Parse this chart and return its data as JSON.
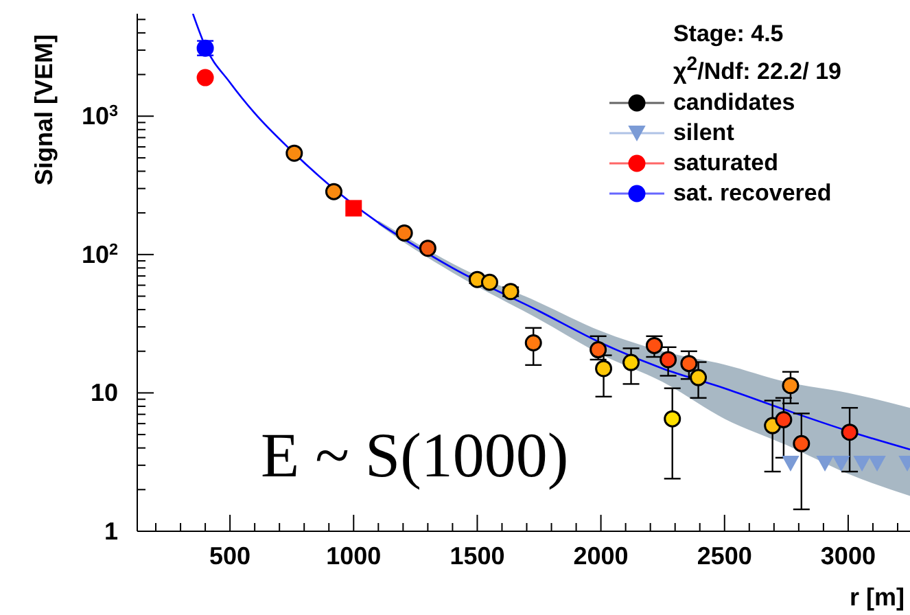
{
  "chart_data": {
    "type": "scatter",
    "xlabel": "r [m]",
    "ylabel": "Signal [VEM]",
    "log": true,
    "legend": "top right",
    "annotations": [
      "E ~ S(1000)",
      "Stage: 4.5",
      "χ$^{2}$/Ndf: 22.2/ 19"
    ],
    "xlim": [
      125,
      3250
    ],
    "xticks": [
      {
        "value": 200,
        "label": null
      },
      {
        "value": 300,
        "label": null
      },
      {
        "value": 400,
        "label": null
      },
      500,
      {
        "value": 600,
        "label": null
      },
      {
        "value": 700,
        "label": null
      },
      {
        "value": 800,
        "label": null
      },
      {
        "value": 900,
        "label": null
      },
      1000,
      {
        "value": 1100,
        "label": null
      },
      {
        "value": 1200,
        "label": null
      },
      {
        "value": 1300,
        "label": null
      },
      {
        "value": 1400,
        "label": null
      },
      1500,
      {
        "value": 1600,
        "label": null
      },
      {
        "value": 1700,
        "label": null
      },
      {
        "value": 1800,
        "label": null
      },
      {
        "value": 1900,
        "label": null
      },
      2000,
      {
        "value": 2100,
        "label": null
      },
      {
        "value": 2200,
        "label": null
      },
      {
        "value": 2300,
        "label": null
      },
      {
        "value": 2400,
        "label": null
      },
      2500,
      {
        "value": 2600,
        "label": null
      },
      {
        "value": 2700,
        "label": null
      },
      {
        "value": 2800,
        "label": null
      },
      {
        "value": 2900,
        "label": null
      },
      3000,
      {
        "value": 3100,
        "label": null
      },
      {
        "value": 3200,
        "label": null
      }
    ],
    "ylim": [
      1,
      5500
    ],
    "yticks": [
      1,
      {
        "value": 2,
        "label": null
      },
      {
        "value": 3,
        "label": null
      },
      {
        "value": 4,
        "label": null
      },
      {
        "value": 5,
        "label": null
      },
      {
        "value": 6,
        "label": null
      },
      {
        "value": 7,
        "label": null
      },
      {
        "value": 8,
        "label": null
      },
      {
        "value": 9,
        "label": null
      },
      10,
      {
        "value": 20,
        "label": null
      },
      {
        "value": 30,
        "label": null
      },
      {
        "value": 40,
        "label": null
      },
      {
        "value": 50,
        "label": null
      },
      {
        "value": 60,
        "label": null
      },
      {
        "value": 70,
        "label": null
      },
      {
        "value": 80,
        "label": null
      },
      {
        "value": 90,
        "label": null
      },
      {
        "value": 100,
        "label": "10$^{2}$"
      },
      {
        "value": 200,
        "label": null
      },
      {
        "value": 300,
        "label": null
      },
      {
        "value": 400,
        "label": null
      },
      {
        "value": 500,
        "label": null
      },
      {
        "value": 600,
        "label": null
      },
      {
        "value": 700,
        "label": null
      },
      {
        "value": 800,
        "label": null
      },
      {
        "value": 900,
        "label": null
      },
      {
        "value": 1000,
        "label": "10$^{3}$"
      },
      {
        "value": 2000,
        "label": null
      },
      {
        "value": 3000,
        "label": null
      },
      {
        "value": 4000,
        "label": null
      },
      {
        "value": 5000,
        "label": null
      }
    ],
    "series": [
      {
        "type": "line",
        "color": "#0000ff",
        "marker": "none",
        "x": [
          350,
          400,
          500,
          600,
          750,
          900,
          1100,
          1250,
          1400,
          1750,
          2000,
          2250,
          2500,
          2750,
          3000,
          3250
        ],
        "values": [
          5500,
          3200,
          1750,
          1050,
          560,
          320,
          170,
          115,
          80,
          39,
          23,
          15,
          10.8,
          7.5,
          5.3,
          3.9
        ],
        "lower": [
          null,
          null,
          null,
          null,
          null,
          null,
          165,
          108,
          74,
          34,
          19,
          12,
          6.5,
          4.2,
          2.6,
          1.8
        ],
        "upper": [
          null,
          null,
          null,
          null,
          null,
          null,
          176,
          122,
          86,
          45,
          28,
          20,
          16,
          12,
          10,
          7.8
        ]
      },
      {
        "name": "candidates",
        "color": "#000000",
        "marker": "circle",
        "x": [
          760,
          920,
          1205,
          1300,
          1500,
          1550,
          1635,
          1727,
          1989,
          2011,
          2122,
          2216,
          2272,
          2289,
          2356,
          2394,
          2694,
          2739,
          2767,
          2811,
          3006
        ],
        "values": [
          540,
          285,
          143,
          111,
          66,
          63,
          54,
          23,
          20.5,
          15,
          16.6,
          22,
          17.4,
          6.5,
          16.3,
          12.9,
          5.8,
          6.4,
          11.3,
          4.3,
          5.2
        ],
        "errors": [
          null,
          null,
          null,
          null,
          [
            62,
            70
          ],
          null,
          [
            50,
            58
          ],
          [
            15.9,
            29.5
          ],
          [
            17.4,
            25.7
          ],
          [
            9.4,
            18.7
          ],
          [
            11.6,
            21
          ],
          [
            18.2,
            25.7
          ],
          [
            13.3,
            21.4
          ],
          [
            2.4,
            10.8
          ],
          [
            12.6,
            20
          ],
          [
            9.2,
            16.7
          ],
          [
            2.7,
            8.8
          ],
          [
            3.4,
            9.2
          ],
          [
            8.4,
            14.2
          ],
          [
            1.44,
            7.1
          ],
          [
            2.7,
            7.8
          ]
        ],
        "colors": [
          "#f98a10",
          "#f98a10",
          "#f97a10",
          "#f05a10",
          "#ffb60a",
          "#ffb60a",
          "#ffb60a",
          "#ff7a10",
          "#ff6010",
          "#ffc808",
          "#ffd000",
          "#ff5010",
          "#ff3a10",
          "#ffe000",
          "#ff5a10",
          "#ffc808",
          "#ffc010",
          "#ff3a10",
          "#ff8a10",
          "#ff5010",
          "#ff2a10"
        ]
      },
      {
        "name": "silent",
        "color": "#7b9bd6",
        "marker": "triangle",
        "x": [
          2767,
          2906,
          2972,
          3056,
          3117,
          3239
        ],
        "values": [
          3.1,
          3.1,
          3.1,
          3.1,
          3.1,
          3.1
        ]
      },
      {
        "name": "saturated",
        "color": "#ff0000",
        "marker": "circle",
        "x": [
          400
        ],
        "values": [
          1900
        ]
      },
      {
        "name": "sat. recovered",
        "color": "#0000ff",
        "marker": "circle",
        "x": [
          400
        ],
        "values": [
          3100
        ],
        "errors": [
          [
            2750,
            3500
          ]
        ]
      },
      {
        "color": "#ff0000",
        "marker": "square",
        "x": [
          1000
        ],
        "values": [
          216
        ]
      }
    ]
  }
}
